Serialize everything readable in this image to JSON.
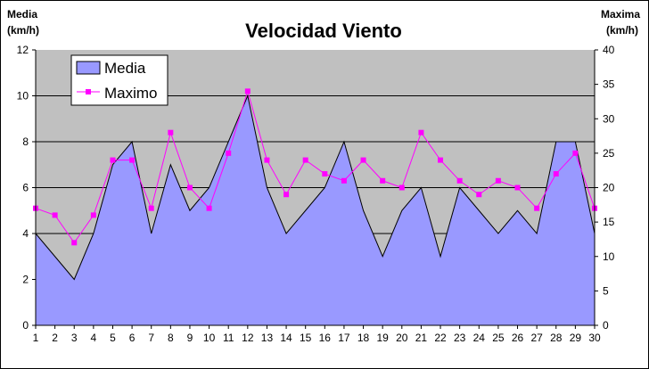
{
  "chart_data": {
    "type": "area+line",
    "title": "Velocidad Viento",
    "ylabel_left": [
      "Media",
      "(km/h)"
    ],
    "ylabel_right": [
      "Maxima",
      "(km/h)"
    ],
    "categories": [
      1,
      2,
      3,
      4,
      5,
      6,
      7,
      8,
      9,
      10,
      11,
      12,
      13,
      14,
      15,
      16,
      17,
      18,
      19,
      20,
      21,
      22,
      23,
      24,
      25,
      26,
      27,
      28,
      29,
      30
    ],
    "ylim_left": [
      0,
      12
    ],
    "yticks_left": [
      0,
      2,
      4,
      6,
      8,
      10,
      12
    ],
    "ylim_right": [
      0,
      40
    ],
    "yticks_right": [
      0,
      5,
      10,
      15,
      20,
      25,
      30,
      35,
      40
    ],
    "grid": true,
    "legend_position": "top-left",
    "series": [
      {
        "name": "Media",
        "type": "area",
        "axis": "left",
        "color": "#9999FF",
        "values": [
          4,
          3,
          2,
          4,
          7,
          8,
          4,
          7,
          5,
          6,
          8,
          10,
          6,
          4,
          5,
          6,
          8,
          5,
          3,
          5,
          6,
          3,
          6,
          5,
          4,
          5,
          4,
          8,
          8,
          4
        ]
      },
      {
        "name": "Maximo",
        "type": "line",
        "axis": "right",
        "color": "#FF00FF",
        "values": [
          17,
          16,
          12,
          16,
          24,
          24,
          17,
          28,
          20,
          17,
          25,
          34,
          24,
          19,
          24,
          22,
          21,
          24,
          21,
          20,
          28,
          24,
          21,
          19,
          21,
          20,
          17,
          22,
          25,
          17
        ]
      }
    ]
  }
}
